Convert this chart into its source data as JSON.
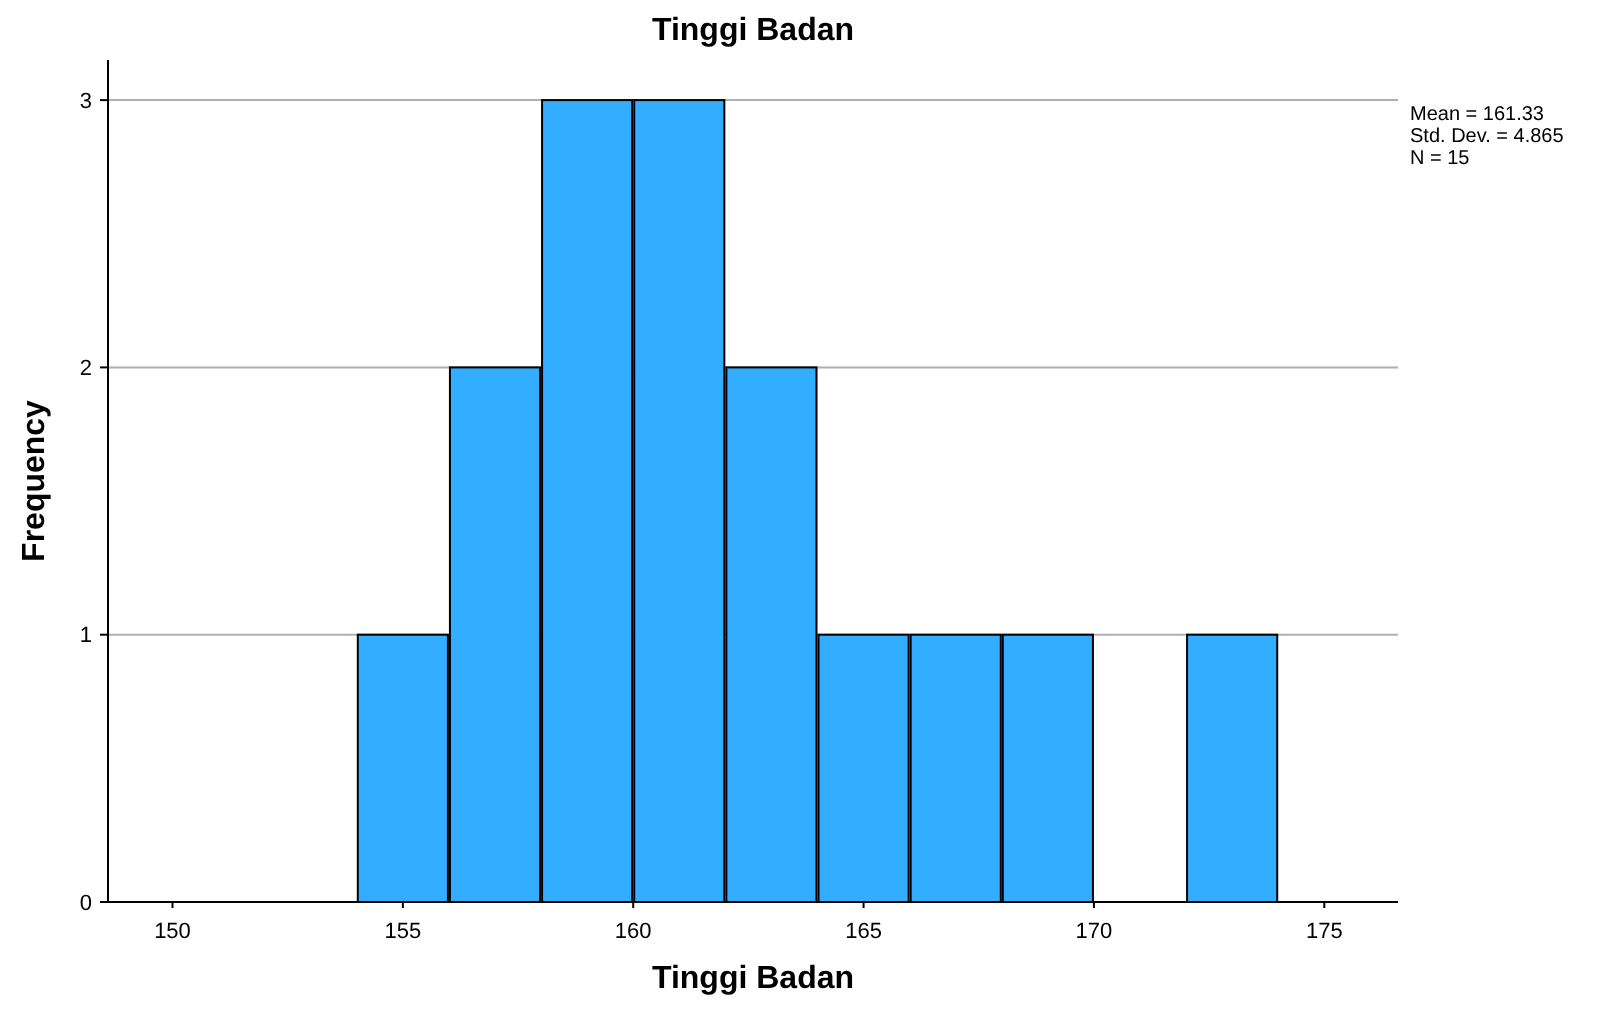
{
  "chart_data": {
    "type": "histogram",
    "title": "Tinggi Badan",
    "xlabel": "Tinggi Badan",
    "ylabel": "Frequency",
    "bins": [
      154,
      156,
      158,
      160,
      162,
      164,
      166,
      168,
      170,
      172,
      174
    ],
    "values": [
      1,
      2,
      3,
      3,
      2,
      1,
      1,
      1,
      0,
      1
    ],
    "color": "#33adff",
    "xlim": [
      148.6,
      176.6
    ],
    "xticks": [
      150,
      155,
      160,
      165,
      170,
      175
    ],
    "ylim": [
      0,
      3.15
    ],
    "yticks": [
      0,
      1,
      2,
      3
    ],
    "grid": "y",
    "annotations": [
      "Mean = 161.33",
      "Std. Dev. = 4.865",
      "N = 15"
    ]
  }
}
